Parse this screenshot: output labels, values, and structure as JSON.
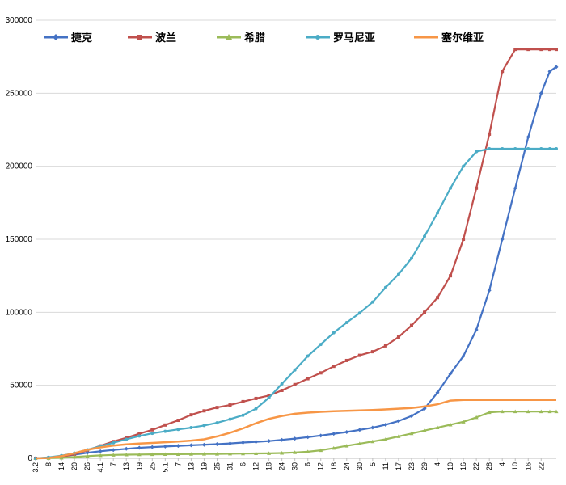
{
  "chart_data": {
    "type": "line",
    "title": "",
    "xlabel": "",
    "ylabel": "",
    "ylim": [
      0,
      300000
    ],
    "yticks": [
      0,
      50000,
      100000,
      150000,
      200000,
      250000,
      300000
    ],
    "grid": "horizontal",
    "legend_position": "top-left",
    "x_tick_labels": [
      "3.2",
      "8",
      "14",
      "20",
      "26",
      "4.1",
      "7",
      "13",
      "19",
      "25",
      "5.1",
      "7",
      "13",
      "19",
      "25",
      "31",
      "6",
      "12",
      "18",
      "24",
      "30",
      "6",
      "12",
      "18",
      "24",
      "30",
      "5",
      "11",
      "17",
      "23",
      "29",
      "4",
      "10",
      "16",
      "22",
      "28",
      "4",
      "10",
      "16",
      "22"
    ],
    "x": [
      0,
      6,
      12,
      18,
      24,
      30,
      36,
      42,
      48,
      54,
      60,
      66,
      72,
      78,
      84,
      90,
      96,
      102,
      108,
      114,
      120,
      126,
      132,
      138,
      144,
      150,
      156,
      162,
      168,
      174,
      180,
      186,
      192,
      198,
      204,
      210,
      216,
      222,
      228,
      234,
      238,
      241
    ],
    "series": [
      {
        "name": "捷克",
        "color": "#4472C4",
        "marker": "diamond",
        "values": [
          5,
          500,
          1200,
          2500,
          3800,
          4800,
          5700,
          6500,
          7200,
          7700,
          8100,
          8500,
          8900,
          9300,
          9700,
          10200,
          10800,
          11300,
          11800,
          12600,
          13500,
          14500,
          15600,
          16800,
          18000,
          19500,
          21000,
          23000,
          25500,
          29000,
          34000,
          45000,
          58000,
          70000,
          88000,
          115000,
          150000,
          185000,
          220000,
          250000,
          265000,
          268000
        ]
      },
      {
        "name": "波兰",
        "color": "#C0504D",
        "marker": "square",
        "values": [
          5,
          300,
          1000,
          2800,
          5500,
          8500,
          11500,
          14000,
          16800,
          19500,
          22800,
          26000,
          29800,
          32500,
          34800,
          36500,
          38800,
          41000,
          43000,
          46500,
          50500,
          54500,
          58500,
          63000,
          67000,
          70500,
          73000,
          77000,
          83000,
          91000,
          100000,
          110000,
          125000,
          150000,
          185000,
          222000,
          265000,
          280000,
          280000,
          280000,
          280000,
          280000
        ]
      },
      {
        "name": "希腊",
        "color": "#9BBB59",
        "marker": "triangle",
        "values": [
          5,
          100,
          300,
          900,
          1500,
          2000,
          2300,
          2500,
          2600,
          2700,
          2750,
          2800,
          2900,
          2950,
          3000,
          3100,
          3200,
          3300,
          3400,
          3600,
          4000,
          4500,
          5500,
          7000,
          8500,
          10000,
          11500,
          13000,
          15000,
          17000,
          19000,
          21000,
          23000,
          25000,
          28000,
          31500,
          32000,
          32000,
          32000,
          32000,
          32000,
          32000
        ]
      },
      {
        "name": "罗马尼亚",
        "color": "#4BACC6",
        "marker": "circle",
        "values": [
          5,
          600,
          1800,
          3500,
          5800,
          8300,
          10600,
          13000,
          15300,
          17100,
          18500,
          19800,
          21000,
          22500,
          24300,
          26800,
          29500,
          34000,
          41500,
          51000,
          60500,
          70000,
          78000,
          86000,
          93000,
          99500,
          107000,
          117000,
          126000,
          137000,
          152000,
          168000,
          185000,
          200000,
          210000,
          212000,
          212000,
          212000,
          212000,
          212000,
          212000,
          212000
        ]
      },
      {
        "name": "塞尔维亚",
        "color": "#F79646",
        "marker": "none",
        "values": [
          5,
          200,
          1500,
          3500,
          5800,
          7500,
          8700,
          9600,
          10100,
          10500,
          11000,
          11500,
          12100,
          13000,
          15000,
          17500,
          20500,
          24000,
          27000,
          29000,
          30500,
          31300,
          31800,
          32200,
          32500,
          32800,
          33100,
          33500,
          34000,
          34500,
          35500,
          37000,
          39500,
          40000,
          40000,
          40000,
          40000,
          40000,
          40000,
          40000,
          40000,
          40000
        ]
      }
    ]
  }
}
